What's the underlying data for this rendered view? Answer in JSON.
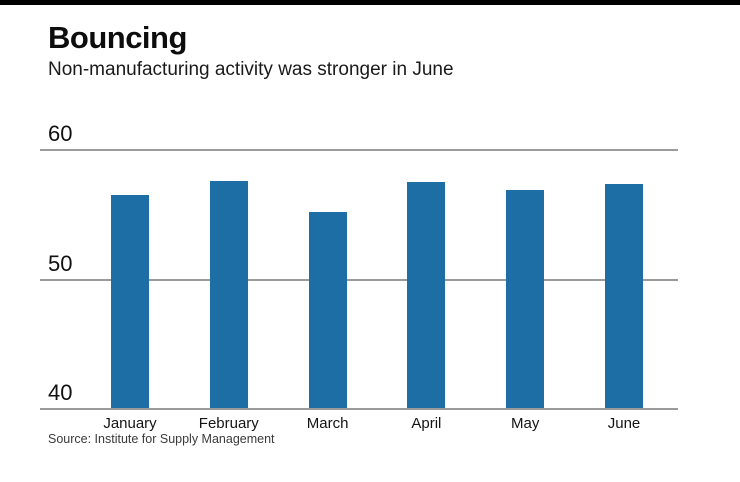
{
  "page": {
    "background_color": "#ffffff",
    "top_rule_color": "#000000"
  },
  "header": {
    "title": "Bouncing",
    "subtitle": "Non-manufacturing activity was stronger in June"
  },
  "chart_data": {
    "type": "bar",
    "categories": [
      "January",
      "February",
      "March",
      "April",
      "May",
      "June"
    ],
    "values": [
      56.5,
      57.6,
      55.2,
      57.5,
      56.9,
      57.4
    ],
    "title": "Bouncing",
    "subtitle": "Non-manufacturing activity was stronger in June",
    "xlabel": "",
    "ylabel": "",
    "ylim": [
      40,
      60
    ],
    "yticks": [
      60,
      50,
      40
    ],
    "grid": true,
    "legend": false,
    "bar_color": "#1d6ea5",
    "gridline_color": "#9b9b9b",
    "baseline_color": "#9b9b9b"
  },
  "footer": {
    "source": "Source: Institute for Supply Management"
  }
}
